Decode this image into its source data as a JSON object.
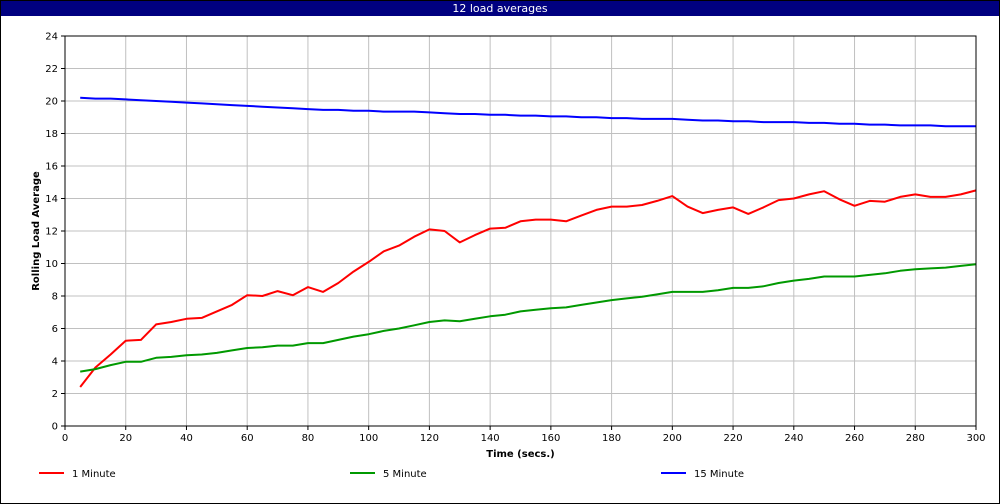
{
  "window": {
    "title": "12 load averages"
  },
  "chart_data": {
    "type": "line",
    "title": "12 load averages",
    "xlabel": "Time (secs.)",
    "ylabel": "Rolling Load Average",
    "xlim": [
      0,
      300
    ],
    "ylim": [
      0,
      24
    ],
    "xticks": [
      0,
      20,
      40,
      60,
      80,
      100,
      120,
      140,
      160,
      180,
      200,
      220,
      240,
      260,
      280,
      300
    ],
    "yticks": [
      0,
      2,
      4,
      6,
      8,
      10,
      12,
      14,
      16,
      18,
      20,
      22,
      24
    ],
    "grid": true,
    "legend_position": "bottom",
    "x": [
      5,
      10,
      15,
      20,
      25,
      30,
      35,
      40,
      45,
      50,
      55,
      60,
      65,
      70,
      75,
      80,
      85,
      90,
      95,
      100,
      105,
      110,
      115,
      120,
      125,
      130,
      135,
      140,
      145,
      150,
      155,
      160,
      165,
      170,
      175,
      180,
      185,
      190,
      195,
      200,
      205,
      210,
      215,
      220,
      225,
      230,
      235,
      240,
      245,
      250,
      255,
      260,
      265,
      270,
      275,
      280,
      285,
      290,
      295,
      300
    ],
    "series": [
      {
        "name": "1 Minute",
        "color": "#ff0000",
        "values": [
          2.4,
          3.6,
          4.4,
          5.25,
          5.3,
          6.25,
          6.4,
          6.6,
          6.65,
          7.05,
          7.45,
          8.05,
          8.0,
          8.3,
          8.05,
          8.55,
          8.25,
          8.8,
          9.5,
          10.1,
          10.75,
          11.1,
          11.65,
          12.1,
          12.0,
          11.3,
          11.75,
          12.15,
          12.2,
          12.6,
          12.7,
          12.7,
          12.6,
          12.95,
          13.3,
          13.5,
          13.5,
          13.6,
          13.85,
          14.15,
          13.5,
          13.1,
          13.3,
          13.45,
          13.05,
          13.45,
          13.9,
          14.0,
          14.25,
          14.45,
          13.95,
          13.55,
          13.85,
          13.8,
          14.1,
          14.25,
          14.1,
          14.1,
          14.25,
          14.5
        ]
      },
      {
        "name": "5 Minute",
        "color": "#009900",
        "values": [
          3.35,
          3.5,
          3.75,
          3.95,
          3.95,
          4.2,
          4.25,
          4.35,
          4.4,
          4.5,
          4.65,
          4.8,
          4.85,
          4.95,
          4.95,
          5.1,
          5.1,
          5.3,
          5.5,
          5.65,
          5.85,
          6.0,
          6.2,
          6.4,
          6.5,
          6.45,
          6.6,
          6.75,
          6.85,
          7.05,
          7.15,
          7.25,
          7.3,
          7.45,
          7.6,
          7.75,
          7.85,
          7.95,
          8.1,
          8.25,
          8.25,
          8.25,
          8.35,
          8.5,
          8.5,
          8.6,
          8.8,
          8.95,
          9.05,
          9.2,
          9.2,
          9.2,
          9.3,
          9.4,
          9.55,
          9.65,
          9.7,
          9.75,
          9.85,
          9.95
        ]
      },
      {
        "name": "15 Minute",
        "color": "#0000ff",
        "values": [
          20.2,
          20.15,
          20.15,
          20.1,
          20.05,
          20.0,
          19.95,
          19.9,
          19.85,
          19.8,
          19.75,
          19.7,
          19.65,
          19.6,
          19.55,
          19.5,
          19.45,
          19.45,
          19.4,
          19.4,
          19.35,
          19.35,
          19.35,
          19.3,
          19.25,
          19.2,
          19.2,
          19.15,
          19.15,
          19.1,
          19.1,
          19.05,
          19.05,
          19.0,
          19.0,
          18.95,
          18.95,
          18.9,
          18.9,
          18.9,
          18.85,
          18.8,
          18.8,
          18.75,
          18.75,
          18.7,
          18.7,
          18.7,
          18.65,
          18.65,
          18.6,
          18.6,
          18.55,
          18.55,
          18.5,
          18.5,
          18.5,
          18.45,
          18.45,
          18.45
        ]
      }
    ]
  }
}
